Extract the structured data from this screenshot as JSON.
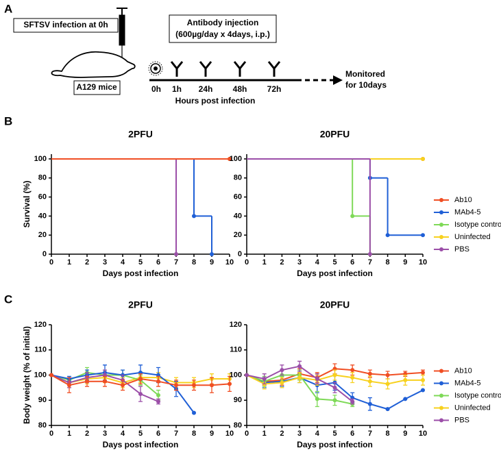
{
  "panel_labels": [
    "A",
    "B",
    "C"
  ],
  "diagram": {
    "infection": "SFTSV infection at 0h",
    "mouse": "A129 mice",
    "injection": [
      "Antibody injection",
      "(600µg/day x 4days, i.p.)"
    ],
    "timepoints": [
      "0h",
      "1h",
      "24h",
      "48h",
      "72h"
    ],
    "axis_label": "Hours post infection",
    "end": [
      "Monitored",
      "for 10days"
    ]
  },
  "chart_data": [
    {
      "type": "step",
      "title": "2PFU",
      "xlabel": "Days post infection",
      "ylabel": "Survival (%)",
      "xlim": [
        0,
        10
      ],
      "xticks": [
        0,
        1,
        2,
        3,
        4,
        5,
        6,
        7,
        8,
        9,
        10
      ],
      "ylim": [
        0,
        105
      ],
      "yticks": [
        0,
        20,
        40,
        60,
        80,
        100
      ],
      "series": [
        {
          "color": "#7ed957",
          "x": [
            0,
            7
          ],
          "values": [
            100,
            0
          ]
        },
        {
          "color": "#9b4ea8",
          "x": [
            0,
            7
          ],
          "values": [
            100,
            0
          ]
        },
        {
          "color": "#1f5fd6",
          "x": [
            0,
            8,
            9
          ],
          "values": [
            100,
            40,
            0
          ]
        },
        {
          "color": "#f7d11e",
          "x": [
            0,
            10
          ],
          "values": [
            100,
            100
          ]
        },
        {
          "color": "#f04e23",
          "x": [
            0,
            10
          ],
          "values": [
            100,
            100
          ]
        }
      ]
    },
    {
      "type": "step",
      "title": "20PFU",
      "xlabel": "Days post infection",
      "legend": "right",
      "xlim": [
        0,
        10
      ],
      "xticks": [
        0,
        1,
        2,
        3,
        4,
        5,
        6,
        7,
        8,
        9,
        10
      ],
      "ylim": [
        0,
        105
      ],
      "yticks": [
        0,
        20,
        40,
        60,
        80,
        100
      ],
      "series": [
        {
          "name": "Ab10",
          "color": "#f04e23",
          "x": [
            0,
            10
          ],
          "values": [
            100,
            100
          ]
        },
        {
          "name": "MAb4-5",
          "color": "#1f5fd6",
          "x": [
            0,
            7,
            8,
            10
          ],
          "values": [
            100,
            80,
            20,
            20
          ]
        },
        {
          "name": "Isotype control",
          "color": "#7ed957",
          "x": [
            0,
            6,
            7
          ],
          "values": [
            100,
            40,
            0
          ]
        },
        {
          "name": "Uninfected",
          "color": "#f7d11e",
          "x": [
            0,
            10
          ],
          "values": [
            100,
            100
          ]
        },
        {
          "name": "PBS",
          "color": "#9b4ea8",
          "x": [
            0,
            7
          ],
          "values": [
            100,
            0
          ]
        }
      ]
    },
    {
      "type": "errorline",
      "title": "2PFU",
      "xlabel": "Days post infection",
      "ylabel": "Body weight (% of initial)",
      "xlim": [
        0,
        10
      ],
      "xticks": [
        0,
        1,
        2,
        3,
        4,
        5,
        6,
        7,
        8,
        9,
        10
      ],
      "ylim": [
        80,
        120
      ],
      "yticks": [
        80,
        90,
        100,
        110,
        120
      ],
      "series": [
        {
          "color": "#f7d11e",
          "x": [
            0,
            1,
            2,
            3,
            4,
            5,
            6,
            7,
            8,
            9,
            10
          ],
          "values": [
            100,
            97,
            98.5,
            99,
            97,
            99,
            99,
            97,
            97,
            98.5,
            98.5
          ],
          "errors": [
            0,
            2,
            2,
            2,
            2,
            2,
            2,
            2,
            2,
            2,
            2
          ]
        },
        {
          "color": "#7ed957",
          "x": [
            0,
            1,
            2,
            3,
            4,
            5,
            6
          ],
          "values": [
            100,
            98,
            101,
            100,
            100,
            98,
            92
          ],
          "errors": [
            0,
            1,
            2,
            2,
            2,
            2,
            2
          ]
        },
        {
          "color": "#1f5fd6",
          "x": [
            0,
            1,
            2,
            3,
            4,
            5,
            6,
            7,
            8
          ],
          "values": [
            100,
            98.5,
            100,
            101,
            100,
            101,
            100,
            94.5,
            85
          ],
          "errors": [
            0,
            1,
            2,
            3,
            2,
            3,
            3,
            3,
            0
          ]
        },
        {
          "color": "#9b4ea8",
          "x": [
            0,
            1,
            2,
            3,
            4,
            5,
            6
          ],
          "values": [
            100,
            97,
            99,
            100,
            98,
            92.5,
            89.5
          ],
          "errors": [
            0,
            2,
            2,
            2,
            2,
            3,
            1
          ]
        },
        {
          "color": "#f04e23",
          "x": [
            0,
            1,
            2,
            3,
            4,
            5,
            6,
            7,
            8,
            9,
            10
          ],
          "values": [
            100,
            96,
            97.5,
            97.5,
            96,
            98.5,
            97.5,
            96,
            96,
            96,
            96.5
          ],
          "errors": [
            0,
            3,
            2,
            2,
            2,
            2,
            2,
            2,
            2,
            3,
            3
          ]
        }
      ]
    },
    {
      "type": "errorline",
      "title": "20PFU",
      "xlabel": "Days post infection",
      "legend": "right",
      "xlim": [
        0,
        10
      ],
      "xticks": [
        0,
        1,
        2,
        3,
        4,
        5,
        6,
        7,
        8,
        9,
        10
      ],
      "ylim": [
        80,
        120
      ],
      "yticks": [
        80,
        90,
        100,
        110,
        120
      ],
      "series": [
        {
          "name": "Ab10",
          "color": "#f04e23",
          "x": [
            0,
            1,
            2,
            3,
            4,
            5,
            6,
            7,
            8,
            9,
            10
          ],
          "values": [
            100,
            97.5,
            98,
            100.5,
            99,
            102.5,
            102,
            100.5,
            100,
            100.5,
            101
          ],
          "errors": [
            0,
            1.5,
            2,
            2,
            2,
            2,
            2,
            1.5,
            1.5,
            1,
            1
          ]
        },
        {
          "name": "MAb4-5",
          "color": "#1f5fd6",
          "x": [
            0,
            1,
            2,
            3,
            4,
            5,
            6,
            7,
            8,
            9,
            10
          ],
          "values": [
            100,
            97,
            97.5,
            99,
            96,
            97,
            91,
            88.5,
            86.5,
            90.5,
            94
          ],
          "errors": [
            0,
            2,
            2,
            2,
            3,
            3,
            2,
            2.5,
            0,
            0,
            0
          ]
        },
        {
          "name": "Isotype control",
          "color": "#7ed957",
          "x": [
            0,
            1,
            2,
            3,
            4,
            5,
            6
          ],
          "values": [
            100,
            97.5,
            100,
            100,
            90.5,
            90,
            88.5
          ],
          "errors": [
            0,
            2,
            2,
            2,
            3,
            2,
            1
          ]
        },
        {
          "name": "Uninfected",
          "color": "#f7d11e",
          "x": [
            0,
            1,
            2,
            3,
            4,
            5,
            6,
            7,
            8,
            9,
            10
          ],
          "values": [
            100,
            96.5,
            97,
            99,
            98,
            100,
            99,
            97.5,
            96.5,
            98,
            98
          ],
          "errors": [
            0,
            2,
            2,
            2,
            2,
            2,
            2,
            2,
            2,
            2,
            2
          ]
        },
        {
          "name": "PBS",
          "color": "#9b4ea8",
          "x": [
            0,
            1,
            2,
            3,
            4,
            5,
            6
          ],
          "values": [
            100,
            98.5,
            102,
            103.5,
            98.5,
            95,
            89.5
          ],
          "errors": [
            0,
            2,
            2,
            2,
            2,
            2,
            1
          ]
        }
      ]
    }
  ]
}
